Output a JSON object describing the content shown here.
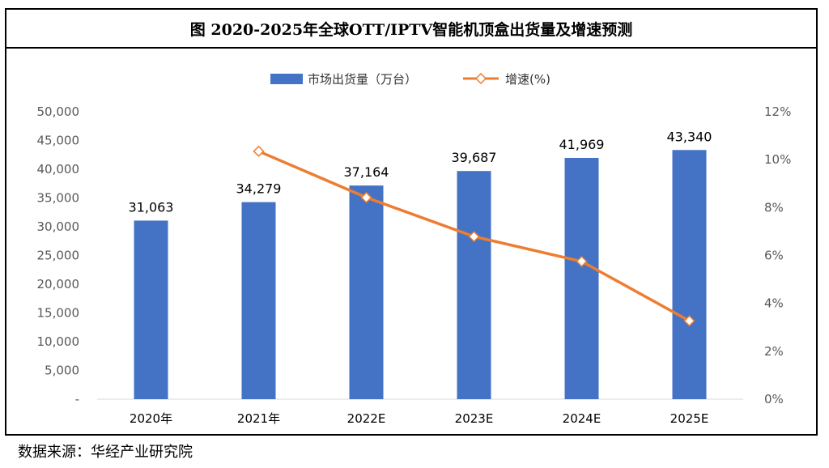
{
  "title": "图  2020-2025年全球OTT/IPTV智能机顶盒出货量及增速预测",
  "source": "数据来源：华经产业研究院",
  "chart_data": {
    "type": "bar+line",
    "categories": [
      "2020年",
      "2021年",
      "2022E",
      "2023E",
      "2024E",
      "2025E"
    ],
    "series": [
      {
        "name": "市场出货量（万台）",
        "type": "bar",
        "axis": "left",
        "color": "#4472C4",
        "values": [
          31063,
          34279,
          37164,
          39687,
          41969,
          43340
        ],
        "labels": [
          "31,063",
          "34,279",
          "37,164",
          "39,687",
          "41,969",
          "43,340"
        ]
      },
      {
        "name": "增速(%)",
        "type": "line",
        "axis": "right",
        "color": "#ED7D31",
        "marker": "diamond",
        "values": [
          null,
          10.35,
          8.42,
          6.79,
          5.75,
          3.27
        ]
      }
    ],
    "y_left": {
      "min": 0,
      "max": 50000,
      "ticks": [
        0,
        5000,
        10000,
        15000,
        20000,
        25000,
        30000,
        35000,
        40000,
        45000,
        50000
      ],
      "tick_labels": [
        "-",
        "5,000",
        "10,000",
        "15,000",
        "20,000",
        "25,000",
        "30,000",
        "35,000",
        "40,000",
        "45,000",
        "50,000"
      ]
    },
    "y_right": {
      "min": 0,
      "max": 12,
      "ticks": [
        0,
        2,
        4,
        6,
        8,
        10,
        12
      ],
      "tick_labels": [
        "0%",
        "2%",
        "4%",
        "6%",
        "8%",
        "10%",
        "12%"
      ]
    },
    "grid": false,
    "legend_position": "top-center"
  }
}
